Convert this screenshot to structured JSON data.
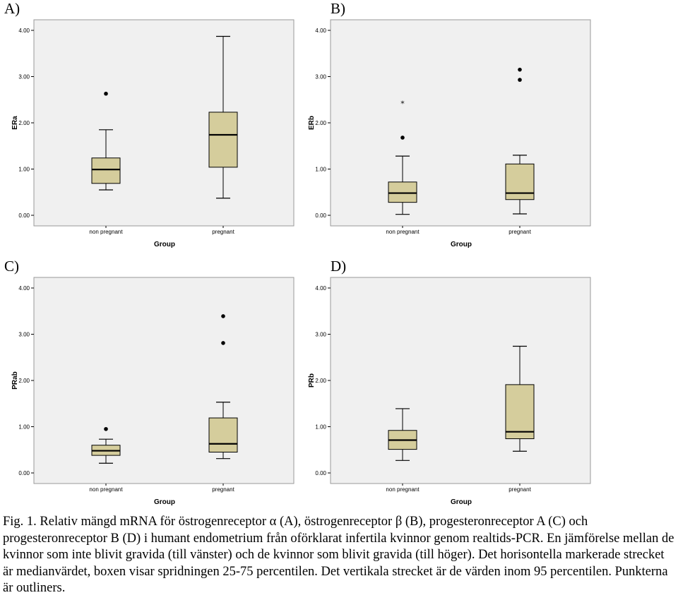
{
  "chart_data": [
    {
      "panel": "A)",
      "type": "boxplot",
      "xlabel": "Group",
      "ylabel": "ERa",
      "ylim": [
        0,
        4
      ],
      "yticks": [
        "0.00",
        "1.00",
        "2.00",
        "3.00",
        "4.00"
      ],
      "categories": [
        "non pregnant",
        "pregnant"
      ],
      "boxes": [
        {
          "category": "non pregnant",
          "whisker_low": 0.55,
          "q1": 0.69,
          "median": 0.99,
          "q3": 1.24,
          "whisker_high": 1.85,
          "outliers": [
            2.63
          ],
          "extremes": []
        },
        {
          "category": "pregnant",
          "whisker_low": 0.37,
          "q1": 1.04,
          "median": 1.74,
          "q3": 2.23,
          "whisker_high": 3.87,
          "outliers": [],
          "extremes": []
        }
      ]
    },
    {
      "panel": "B)",
      "type": "boxplot",
      "xlabel": "Group",
      "ylabel": "ERb",
      "ylim": [
        0,
        4
      ],
      "yticks": [
        "0.00",
        "1.00",
        "2.00",
        "3.00",
        "4.00"
      ],
      "categories": [
        "non pregnant",
        "pregnant"
      ],
      "boxes": [
        {
          "category": "non pregnant",
          "whisker_low": 0.02,
          "q1": 0.28,
          "median": 0.48,
          "q3": 0.72,
          "whisker_high": 1.28,
          "outliers": [
            1.68
          ],
          "extremes": [
            2.45
          ]
        },
        {
          "category": "pregnant",
          "whisker_low": 0.03,
          "q1": 0.34,
          "median": 0.48,
          "q3": 1.11,
          "whisker_high": 1.3,
          "outliers": [
            2.93,
            3.15
          ],
          "extremes": []
        }
      ]
    },
    {
      "panel": "C)",
      "type": "boxplot",
      "xlabel": "Group",
      "ylabel": "PRab",
      "ylim": [
        0,
        4
      ],
      "yticks": [
        "0.00",
        "1.00",
        "2.00",
        "3.00",
        "4.00"
      ],
      "categories": [
        "non pregnant",
        "pregnant"
      ],
      "boxes": [
        {
          "category": "non pregnant",
          "whisker_low": 0.21,
          "q1": 0.38,
          "median": 0.48,
          "q3": 0.6,
          "whisker_high": 0.73,
          "outliers": [
            0.95
          ],
          "extremes": []
        },
        {
          "category": "pregnant",
          "whisker_low": 0.31,
          "q1": 0.45,
          "median": 0.63,
          "q3": 1.19,
          "whisker_high": 1.53,
          "outliers": [
            2.81,
            3.39
          ],
          "extremes": []
        }
      ]
    },
    {
      "panel": "D)",
      "type": "boxplot",
      "xlabel": "Group",
      "ylabel": "PRb",
      "ylim": [
        0,
        4
      ],
      "yticks": [
        "0.00",
        "1.00",
        "2.00",
        "3.00",
        "4.00"
      ],
      "categories": [
        "non pregnant",
        "pregnant"
      ],
      "boxes": [
        {
          "category": "non pregnant",
          "whisker_low": 0.27,
          "q1": 0.51,
          "median": 0.71,
          "q3": 0.92,
          "whisker_high": 1.39,
          "outliers": [],
          "extremes": []
        },
        {
          "category": "pregnant",
          "whisker_low": 0.47,
          "q1": 0.74,
          "median": 0.89,
          "q3": 1.91,
          "whisker_high": 2.74,
          "outliers": [],
          "extremes": []
        }
      ]
    }
  ],
  "colors": {
    "plot_background": "#f0f0f0",
    "box_fill": "#d5cd9c",
    "line": "#000000",
    "frame": "#999999"
  },
  "caption": "Fig. 1. Relativ mängd mRNA för östrogenreceptor α (A), östrogenreceptor β (B), progesteronreceptor A (C) och progesteronreceptor B (D) i humant endometrium från oförklarat infertila kvinnor genom realtids-PCR. En jämförelse mellan de kvinnor som inte blivit gravida (till vänster) och de kvinnor som blivit gravida (till höger). Det horisontella markerade strecket är medianvärdet, boxen visar spridningen 25-75 percentilen. Det vertikala strecket är de värden inom 95 percentilen. Punkterna är outliners."
}
